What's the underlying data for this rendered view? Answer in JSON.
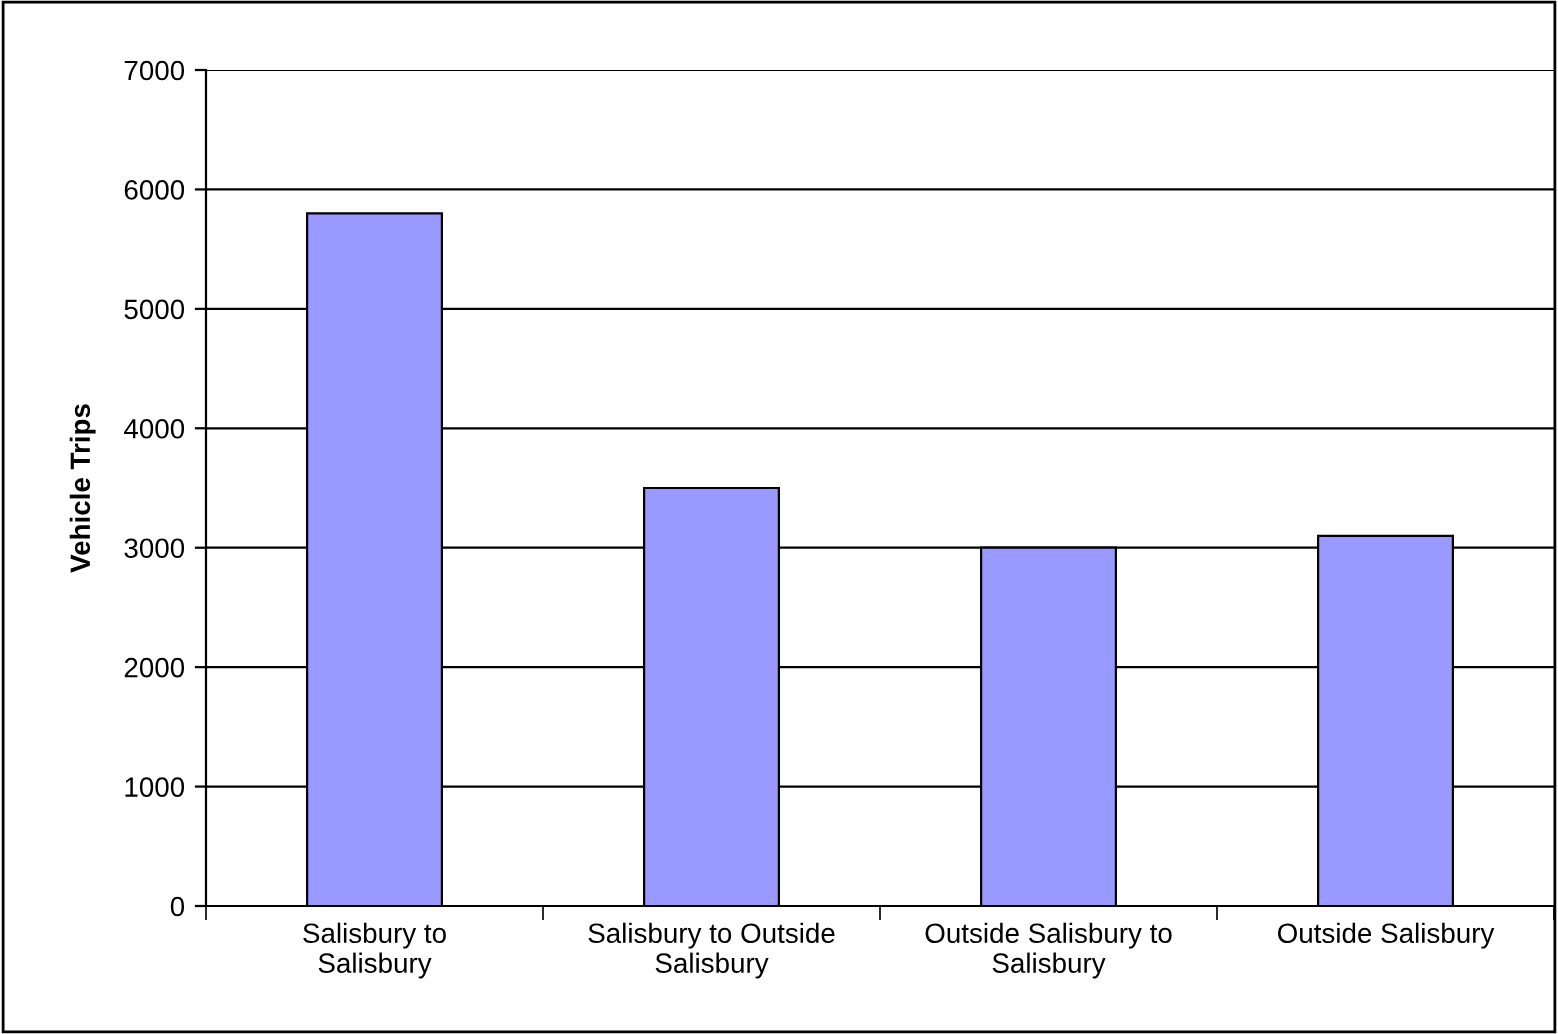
{
  "chart_data": {
    "type": "bar",
    "ylabel": "Vehicle Trips",
    "categories": [
      "Salisbury to Salisbury",
      "Salisbury to Outside Salisbury",
      "Outside Salisbury to Salisbury",
      "Outside Salisbury"
    ],
    "values": [
      5800,
      3500,
      3000,
      3100
    ],
    "color": "#9999ff",
    "ylim": [
      0,
      7000
    ],
    "yticks": [
      0,
      1000,
      2000,
      3000,
      4000,
      5000,
      6000,
      7000
    ],
    "grid": "y",
    "legend": false
  }
}
